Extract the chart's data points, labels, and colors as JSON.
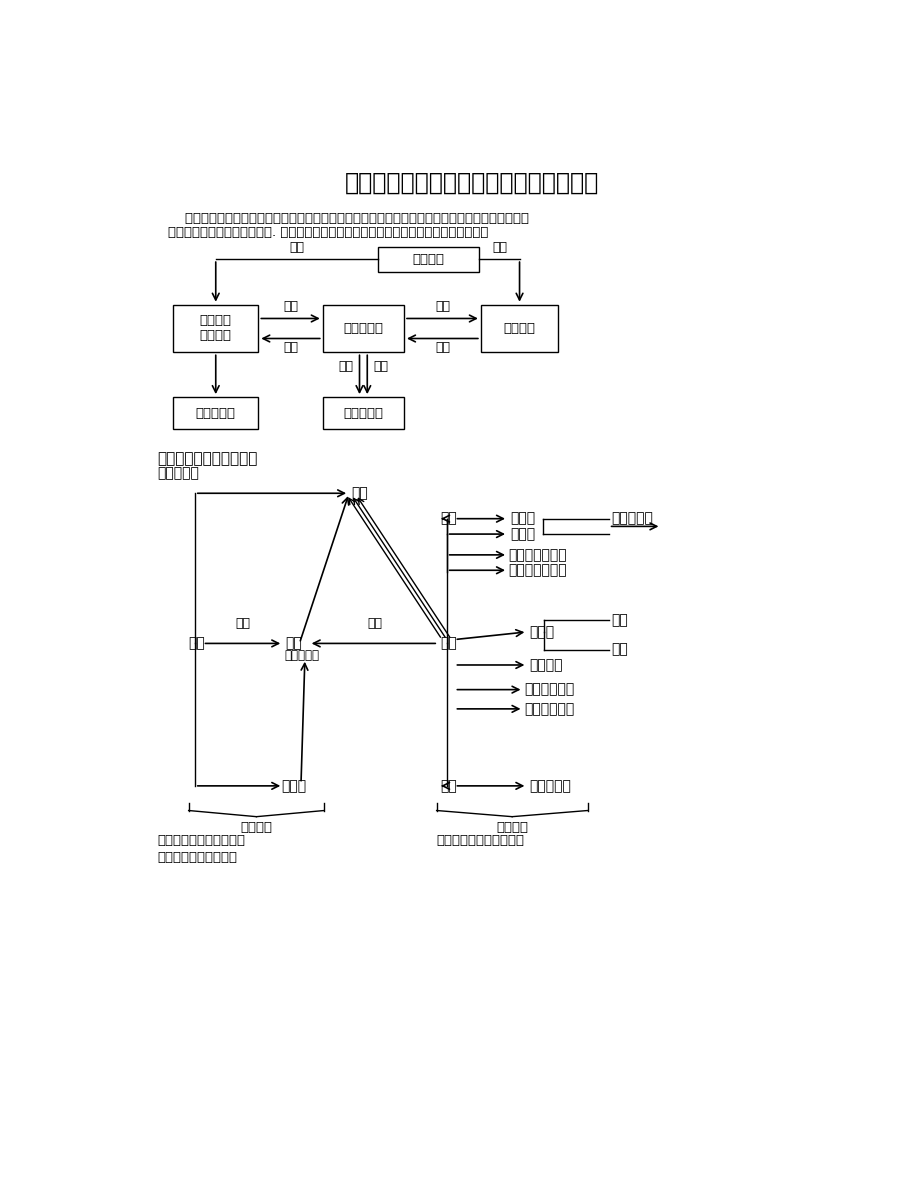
{
  "title": "《初中化学基本概念和原理复习》讲学案",
  "intro_line1": "    基本概念和原理，是对大量化学现象归纳出的规律，因为此们要很好地理解它的内涵和外延，从而",
  "intro_line2": "准确地应用它去分析化学现象. 初中化学基本概念和原理的基本内容和相互关系如下所示：",
  "bg_color": "#ffffff"
}
